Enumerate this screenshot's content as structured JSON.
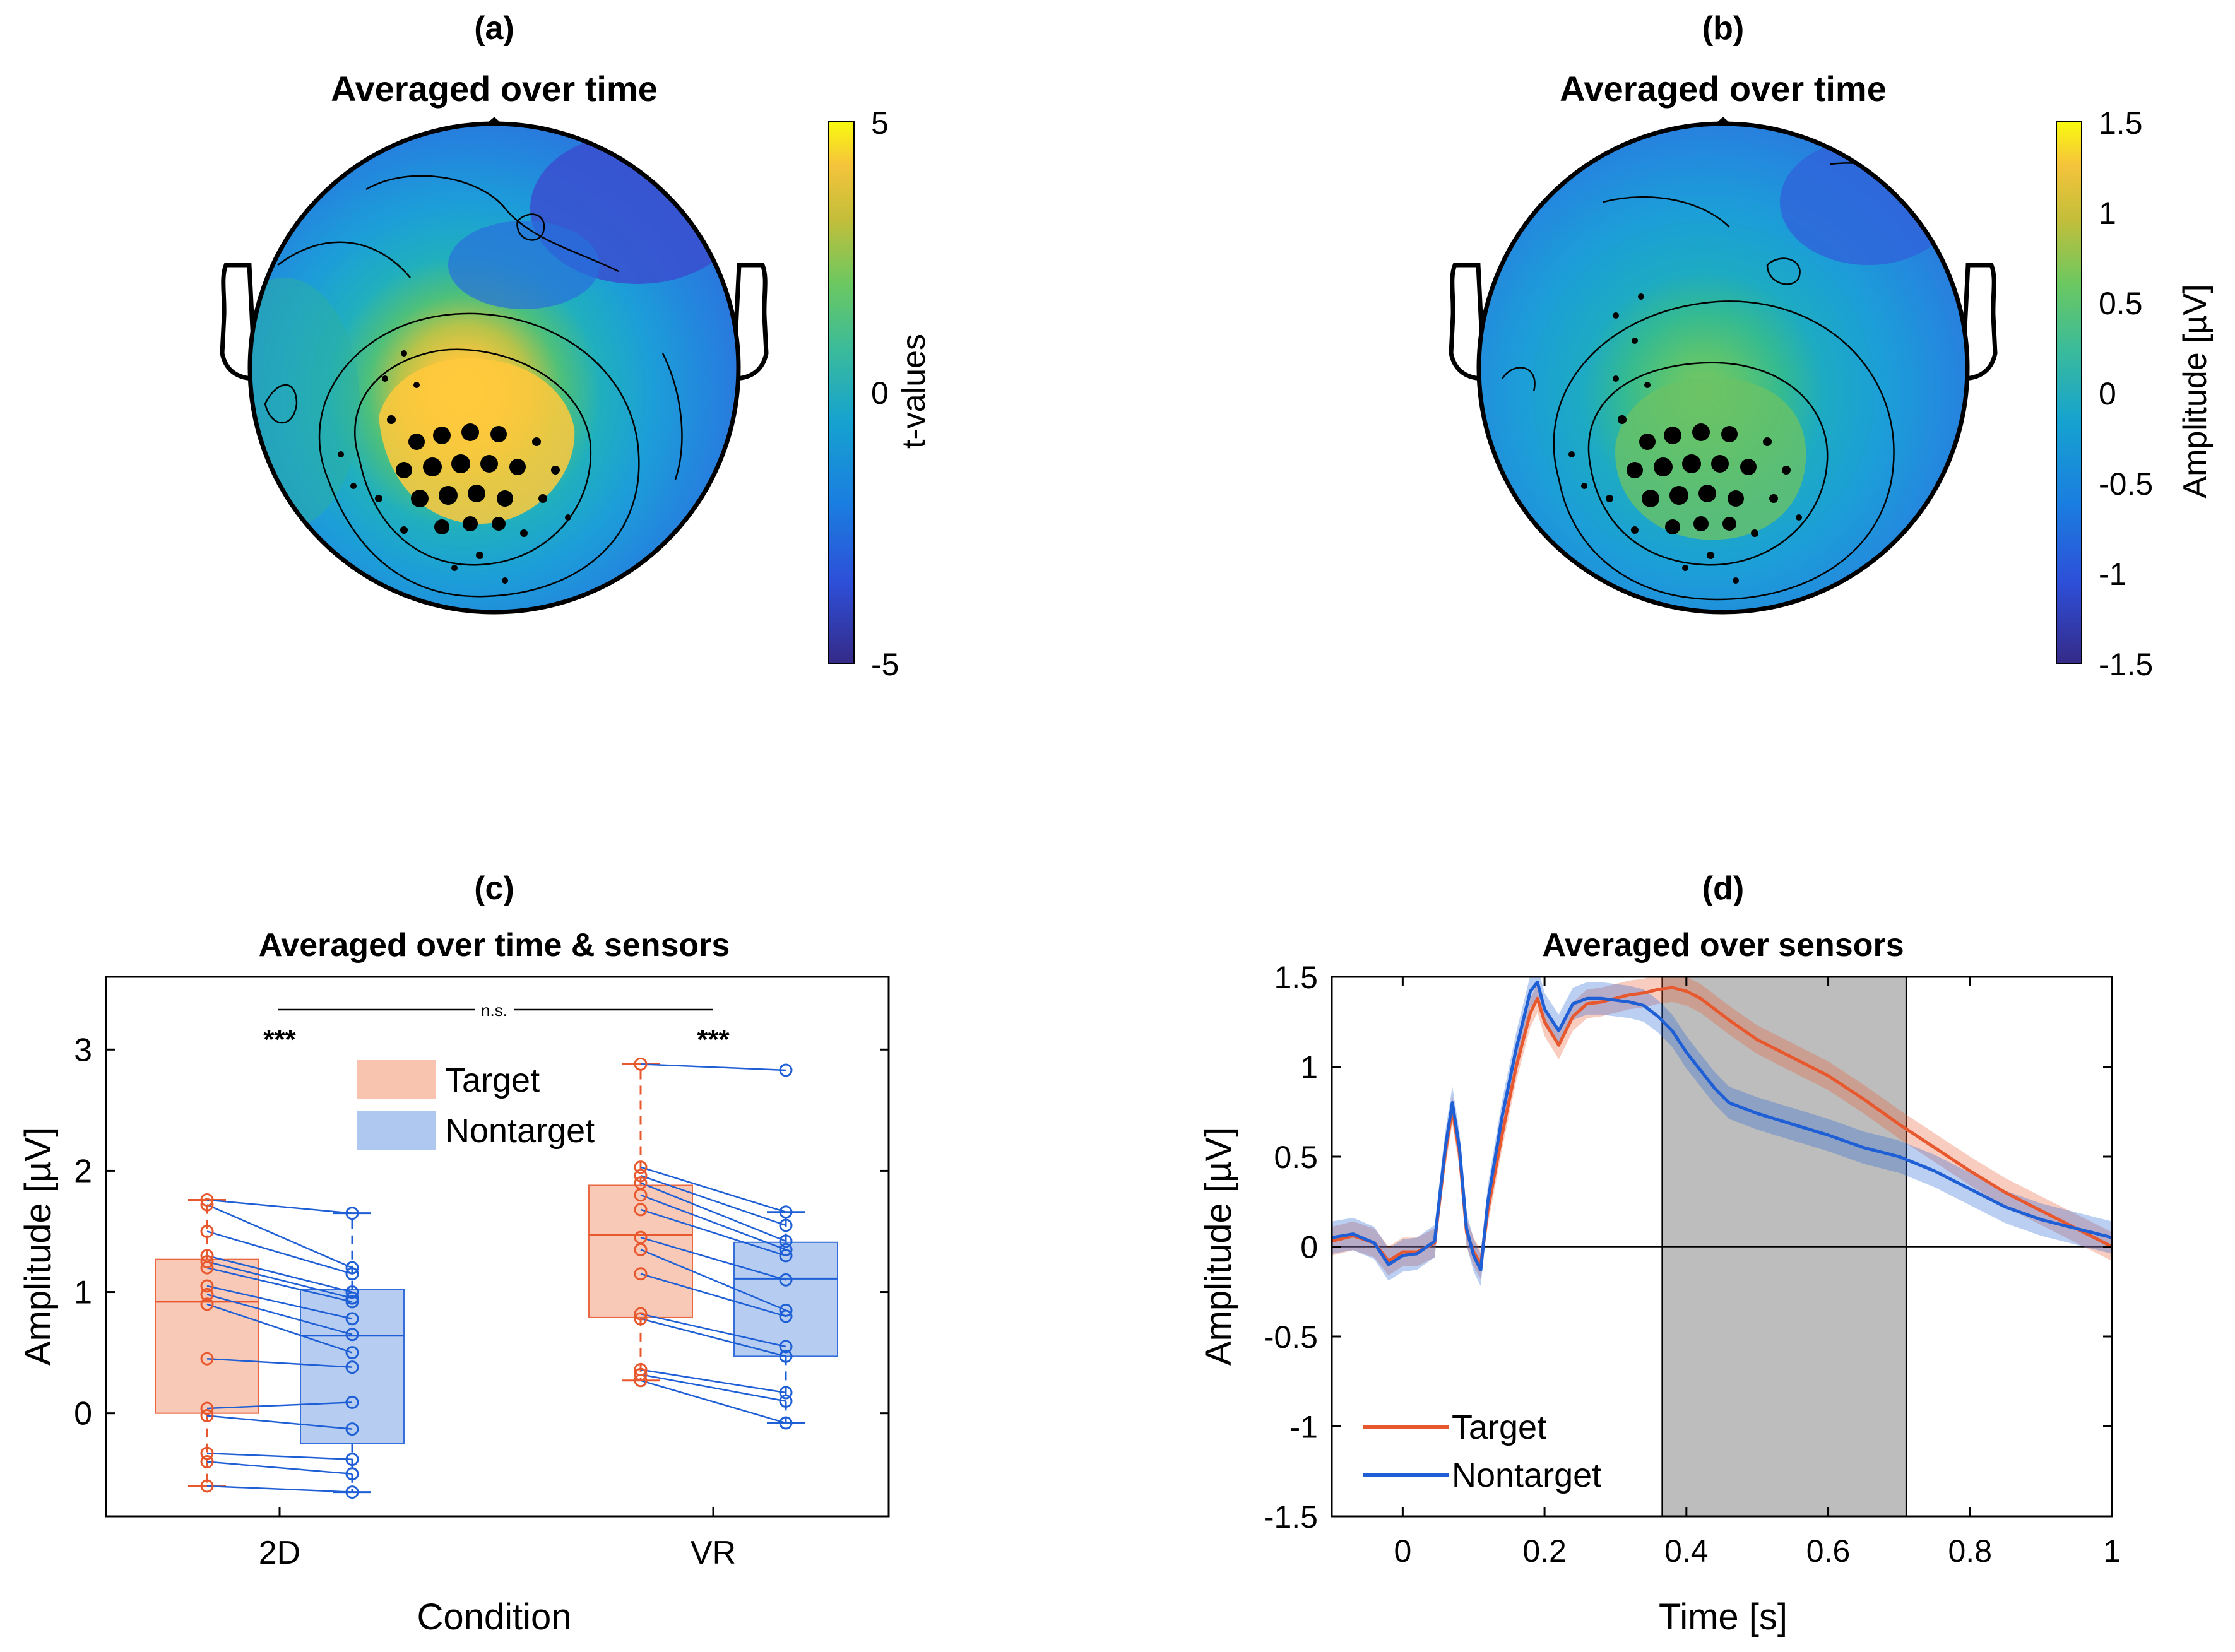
{
  "colors": {
    "target": "#E8582E",
    "nontarget": "#1F5FD6",
    "target_box": "#F8C4B0",
    "nontarget_box": "#AFC8F0",
    "shade": "#BDBDBD",
    "parula_low": "#352A87",
    "parula_high": "#F9FB0E"
  },
  "chart_data": [
    {
      "panel": "a",
      "type": "heatmap",
      "label": "(a)",
      "title": "Averaged over time",
      "colorbar": {
        "label": "t-values",
        "ticks": [
          "5",
          "0",
          "-5"
        ],
        "range": [
          -5,
          5
        ]
      },
      "description_of_data": "scalp topography of t-values; positive cluster over centro-parietal sensors"
    },
    {
      "panel": "b",
      "type": "heatmap",
      "label": "(b)",
      "title": "Averaged over time",
      "colorbar": {
        "label": "Amplitude [µV]",
        "ticks": [
          "1.5",
          "1",
          "0.5",
          "0",
          "-0.5",
          "-1",
          "-1.5"
        ],
        "range": [
          -1.5,
          1.5
        ]
      }
    },
    {
      "panel": "c",
      "type": "box",
      "label": "(c)",
      "title": "Averaged over time & sensors",
      "xlabel": "Condition",
      "ylabel": "Amplitude [µV]",
      "ylim": [
        -0.85,
        3.6
      ],
      "yticks": [
        "0",
        "1",
        "2",
        "3"
      ],
      "categories": [
        "2D",
        "VR"
      ],
      "legend": [
        "Target",
        "Nontarget"
      ],
      "annotations": {
        "sig_2d": "***",
        "sig_vr": "***",
        "between": "n.s."
      },
      "series": [
        {
          "name": "Target",
          "boxes": [
            {
              "category": "2D",
              "q1": 0.0,
              "median": 0.92,
              "q3": 1.27,
              "whisker_low": -0.6,
              "whisker_high": 1.76
            },
            {
              "category": "VR",
              "q1": 0.79,
              "median": 1.47,
              "q3": 1.88,
              "whisker_low": 0.27,
              "whisker_high": 2.88
            }
          ],
          "points_2D": [
            1.76,
            1.72,
            1.5,
            1.3,
            1.25,
            1.2,
            1.05,
            0.98,
            0.9,
            0.45,
            0.04,
            -0.02,
            -0.33,
            -0.4,
            -0.6
          ],
          "points_VR": [
            2.88,
            2.03,
            1.96,
            1.9,
            1.8,
            1.68,
            1.45,
            1.35,
            1.15,
            0.82,
            0.78,
            0.36,
            0.32,
            0.27
          ]
        },
        {
          "name": "Nontarget",
          "boxes": [
            {
              "category": "2D",
              "q1": -0.25,
              "median": 0.64,
              "q3": 1.02,
              "whisker_low": -0.65,
              "whisker_high": 1.65
            },
            {
              "category": "VR",
              "q1": 0.47,
              "median": 1.11,
              "q3": 1.41,
              "whisker_low": -0.08,
              "whisker_high": 1.66
            }
          ],
          "points_2D": [
            1.65,
            1.2,
            1.15,
            1.0,
            0.95,
            0.92,
            0.78,
            0.65,
            0.5,
            0.38,
            0.09,
            -0.13,
            -0.38,
            -0.5,
            -0.65
          ],
          "points_VR": [
            2.83,
            1.66,
            1.55,
            1.42,
            1.35,
            1.3,
            1.1,
            0.85,
            0.8,
            0.55,
            0.47,
            0.17,
            0.1,
            -0.08
          ]
        }
      ]
    },
    {
      "panel": "d",
      "type": "line",
      "label": "(d)",
      "title": "Averaged over sensors",
      "xlabel": "Time [s]",
      "ylabel": "Amplitude [µV]",
      "xlim": [
        -0.1,
        1.0
      ],
      "ylim": [
        -1.5,
        1.5
      ],
      "xticks": [
        "0",
        "0.2",
        "0.4",
        "0.6",
        "0.8",
        "1"
      ],
      "yticks": [
        "1.5",
        "1",
        "0.5",
        "0",
        "-0.5",
        "-1",
        "-1.5"
      ],
      "shaded_window": [
        0.366,
        0.71
      ],
      "legend": [
        "Target",
        "Nontarget"
      ],
      "series": [
        {
          "name": "Target",
          "x": [
            -0.1,
            -0.07,
            -0.04,
            -0.02,
            0.0,
            0.02,
            0.045,
            0.06,
            0.07,
            0.08,
            0.09,
            0.1,
            0.11,
            0.12,
            0.14,
            0.16,
            0.18,
            0.19,
            0.2,
            0.22,
            0.24,
            0.26,
            0.28,
            0.3,
            0.32,
            0.34,
            0.36,
            0.38,
            0.4,
            0.42,
            0.44,
            0.46,
            0.5,
            0.55,
            0.6,
            0.65,
            0.7,
            0.75,
            0.8,
            0.85,
            0.9,
            0.95,
            1.0
          ],
          "y": [
            0.03,
            0.06,
            0.02,
            -0.08,
            -0.03,
            -0.03,
            0.02,
            0.52,
            0.76,
            0.52,
            0.08,
            -0.03,
            -0.1,
            0.2,
            0.62,
            1.0,
            1.3,
            1.38,
            1.25,
            1.12,
            1.28,
            1.35,
            1.36,
            1.38,
            1.4,
            1.41,
            1.43,
            1.44,
            1.42,
            1.38,
            1.32,
            1.26,
            1.15,
            1.05,
            0.95,
            0.82,
            0.68,
            0.55,
            0.42,
            0.3,
            0.2,
            0.1,
            0.0
          ],
          "sem": 0.08
        },
        {
          "name": "Nontarget",
          "x": [
            -0.1,
            -0.07,
            -0.04,
            -0.02,
            0.0,
            0.02,
            0.045,
            0.06,
            0.07,
            0.08,
            0.09,
            0.1,
            0.11,
            0.12,
            0.14,
            0.16,
            0.18,
            0.19,
            0.2,
            0.22,
            0.24,
            0.26,
            0.28,
            0.3,
            0.32,
            0.34,
            0.36,
            0.38,
            0.4,
            0.42,
            0.44,
            0.46,
            0.5,
            0.55,
            0.6,
            0.65,
            0.7,
            0.75,
            0.8,
            0.85,
            0.9,
            0.95,
            1.0
          ],
          "y": [
            0.05,
            0.07,
            0.02,
            -0.1,
            -0.05,
            -0.04,
            0.03,
            0.55,
            0.8,
            0.55,
            0.1,
            -0.05,
            -0.13,
            0.25,
            0.72,
            1.1,
            1.42,
            1.47,
            1.32,
            1.2,
            1.35,
            1.38,
            1.38,
            1.37,
            1.36,
            1.34,
            1.28,
            1.2,
            1.08,
            0.98,
            0.88,
            0.8,
            0.74,
            0.68,
            0.62,
            0.55,
            0.5,
            0.42,
            0.32,
            0.22,
            0.15,
            0.1,
            0.05
          ],
          "sem": 0.09
        }
      ]
    }
  ]
}
